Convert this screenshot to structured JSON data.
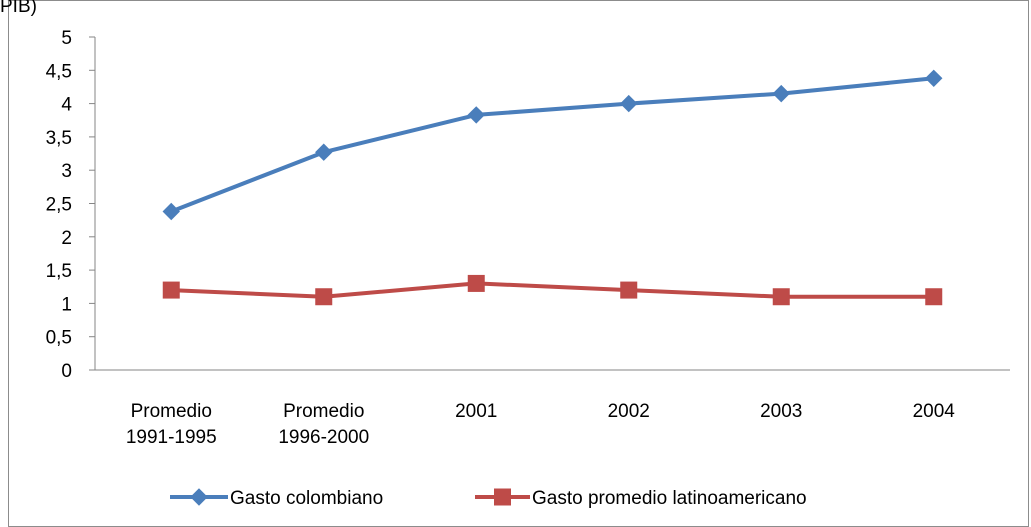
{
  "chart_data": {
    "type": "line",
    "title_fragment": "PIB)",
    "categories": [
      "Promedio 1991-1995",
      "Promedio 1996-2000",
      "2001",
      "2002",
      "2003",
      "2004"
    ],
    "category_lines": [
      [
        "Promedio",
        "1991-1995"
      ],
      [
        "Promedio",
        "1996-2000"
      ],
      [
        "2001"
      ],
      [
        "2002"
      ],
      [
        "2003"
      ],
      [
        "2004"
      ]
    ],
    "yticks": [
      "0",
      "0,5",
      "1",
      "1,5",
      "2",
      "2,5",
      "3",
      "3,5",
      "4",
      "4,5",
      "5"
    ],
    "ylim": [
      0,
      5
    ],
    "ystep": 0.5,
    "series": [
      {
        "name": "Gasto colombiano",
        "color": "#4a7ebb",
        "marker": "diamond",
        "values": [
          2.38,
          3.27,
          3.83,
          4.0,
          4.15,
          4.38
        ]
      },
      {
        "name": "Gasto promedio latinoamericano",
        "color": "#be4b48",
        "marker": "square",
        "values": [
          1.2,
          1.1,
          1.3,
          1.2,
          1.1,
          1.1
        ]
      }
    ],
    "legend_position": "bottom",
    "grid": false
  }
}
